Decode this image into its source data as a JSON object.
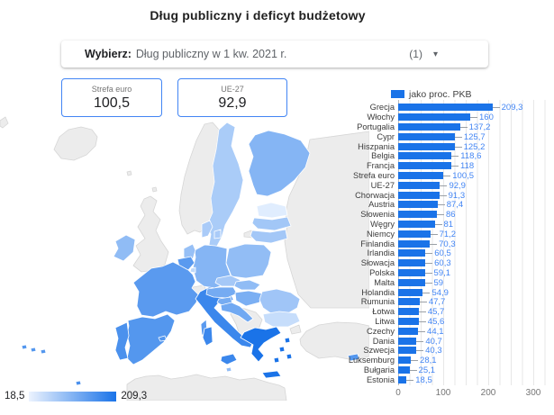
{
  "title": "Dług publiczny i deficyt budżetowy",
  "filter": {
    "label": "Wybierz:",
    "value": "Dług publiczny w 1 kw. 2021 r.",
    "count": "(1)",
    "caret": "▾"
  },
  "stats": [
    {
      "label": "Strefa euro",
      "value": "100,5"
    },
    {
      "label": "UE-27",
      "value": "92,9"
    }
  ],
  "map_legend": {
    "min": "18,5",
    "max": "209,3"
  },
  "colors": {
    "bar": "#1a73e8",
    "value_label": "#4285f4",
    "map_min": "#e0edfe",
    "map_max": "#1a73e8",
    "map_neutral": "#ececec"
  },
  "chart_data": {
    "type": "bar",
    "orientation": "horizontal",
    "legend": "jako proc. PKB",
    "categories": [
      "Grecja",
      "Włochy",
      "Portugalia",
      "Cypr",
      "Hiszpania",
      "Belgia",
      "Francja",
      "Strefa euro",
      "UE-27",
      "Chorwacja",
      "Austria",
      "Słowenia",
      "Węgry",
      "Niemcy",
      "Finlandia",
      "Irlandia",
      "Słowacja",
      "Polska",
      "Malta",
      "Holandia",
      "Rumunia",
      "Łotwa",
      "Litwa",
      "Czechy",
      "Dania",
      "Szwecja",
      "Luksemburg",
      "Bułgaria",
      "Estonia"
    ],
    "values": [
      209.3,
      160,
      137.2,
      125.7,
      125.2,
      118.6,
      118,
      100.5,
      92.9,
      91.3,
      87.4,
      86,
      81,
      71.2,
      70.3,
      60.5,
      60.3,
      59.1,
      59,
      54.9,
      47.7,
      45.7,
      45.6,
      44.1,
      40.7,
      40.3,
      28.1,
      25.1,
      18.5
    ],
    "value_labels": [
      "209,3",
      "160",
      "137,2",
      "125,7",
      "125,2",
      "118,6",
      "118",
      "100,5",
      "92,9",
      "91,3",
      "87,4",
      "86",
      "81",
      "71,2",
      "70,3",
      "60,5",
      "60,3",
      "59,1",
      "59",
      "54,9",
      "47,7",
      "45,7",
      "45,6",
      "44,1",
      "40,7",
      "40,3",
      "28,1",
      "25,1",
      "18,5"
    ],
    "x_ticks": [
      "0",
      "100",
      "200",
      "300"
    ],
    "xlim": [
      0,
      340
    ],
    "grid_step": 25,
    "value_range": [
      18.5,
      209.3
    ]
  }
}
